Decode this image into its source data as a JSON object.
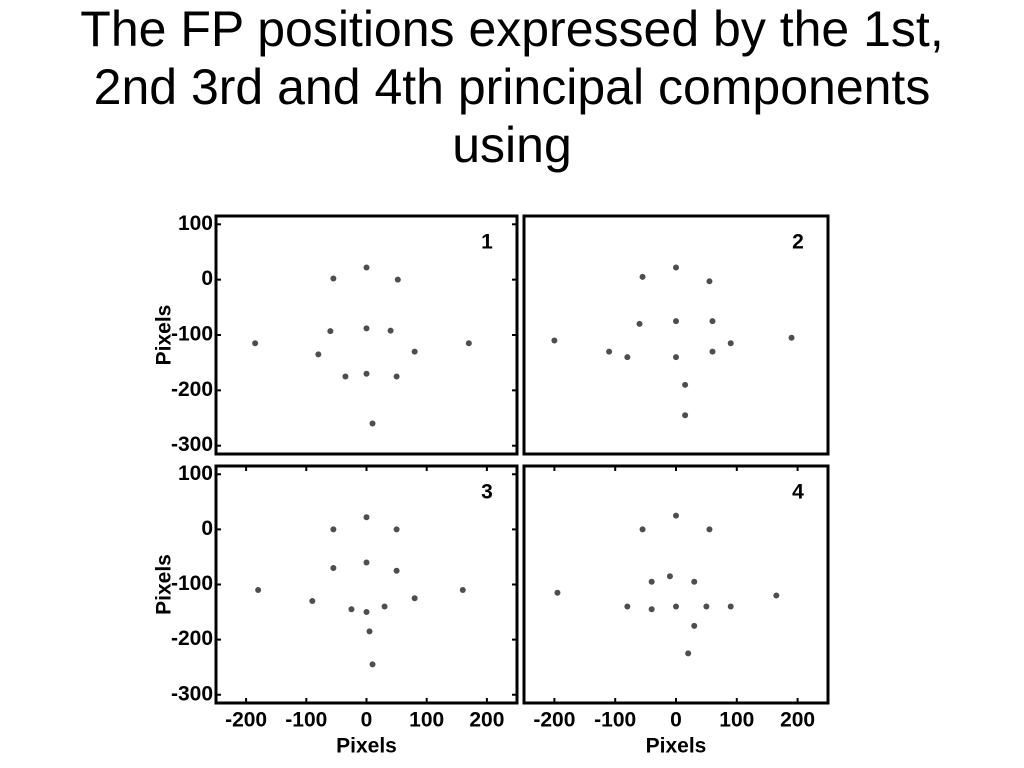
{
  "title": "The FP positions expressed by the 1st, 2nd 3rd and 4th principal components using",
  "chart_data": [
    {
      "type": "scatter",
      "label": "1",
      "ylabel": "Pixels",
      "xlim": [
        -250,
        250
      ],
      "ylim": [
        -315,
        115
      ],
      "yticks": [
        100,
        0,
        -100,
        -200,
        -300
      ],
      "x": [
        0,
        -55,
        52,
        -60,
        0,
        40,
        -185,
        170,
        -80,
        80,
        -35,
        0,
        50,
        10
      ],
      "y": [
        22,
        2,
        0,
        -93,
        -88,
        -92,
        -115,
        -115,
        -135,
        -130,
        -175,
        -170,
        -175,
        -260
      ]
    },
    {
      "type": "scatter",
      "label": "2",
      "xlim": [
        -250,
        250
      ],
      "ylim": [
        -315,
        115
      ],
      "x": [
        0,
        -55,
        55,
        -200,
        -110,
        -80,
        -60,
        0,
        60,
        90,
        60,
        190,
        0,
        15,
        15
      ],
      "y": [
        22,
        5,
        -3,
        -110,
        -130,
        -140,
        -80,
        -75,
        -75,
        -115,
        -130,
        -105,
        -140,
        -190,
        -245
      ]
    },
    {
      "type": "scatter",
      "label": "3",
      "ylabel": "Pixels",
      "xlabel": "Pixels",
      "xlim": [
        -250,
        250
      ],
      "ylim": [
        -315,
        115
      ],
      "yticks": [
        100,
        0,
        -100,
        -200,
        -300
      ],
      "xticks": [
        -200,
        -100,
        0,
        100,
        200
      ],
      "x": [
        0,
        -55,
        50,
        -180,
        160,
        -55,
        0,
        50,
        -90,
        80,
        -25,
        0,
        30,
        5,
        10
      ],
      "y": [
        22,
        0,
        0,
        -110,
        -110,
        -70,
        -60,
        -75,
        -130,
        -125,
        -145,
        -150,
        -140,
        -185,
        -245
      ]
    },
    {
      "type": "scatter",
      "label": "4",
      "xlabel": "Pixels",
      "xlim": [
        -250,
        250
      ],
      "ylim": [
        -315,
        115
      ],
      "xticks": [
        -200,
        -100,
        0,
        100,
        200
      ],
      "x": [
        0,
        -55,
        55,
        -40,
        -10,
        30,
        -195,
        -80,
        -40,
        0,
        50,
        90,
        165,
        30,
        20
      ],
      "y": [
        25,
        0,
        0,
        -95,
        -85,
        -95,
        -115,
        -140,
        -145,
        -140,
        -140,
        -140,
        -120,
        -175,
        -225
      ]
    }
  ]
}
